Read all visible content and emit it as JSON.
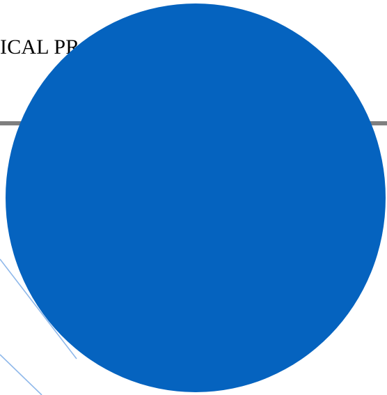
{
  "document": {
    "heading_visible": "ICAL PR",
    "rule_color": "#7f7f7f",
    "decoration_line_color": "#8fb8ea",
    "circle_shape": {
      "fill_color": "#0563bf"
    }
  }
}
